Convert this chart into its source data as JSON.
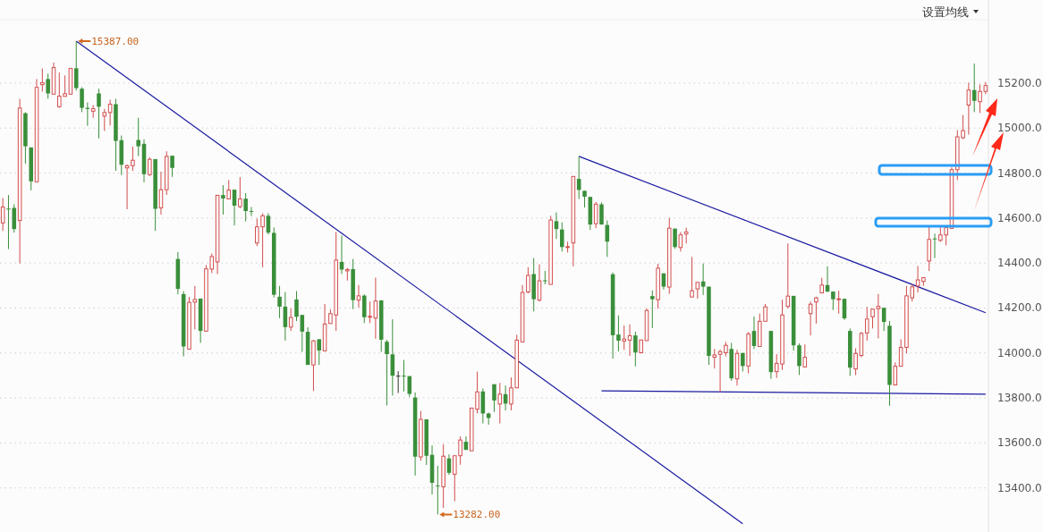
{
  "chart_data": {
    "type": "candlestick",
    "categories": [
      null,
      null,
      null,
      null,
      null,
      null,
      null,
      null,
      null,
      null,
      null,
      null,
      null,
      null,
      null,
      null,
      null,
      null,
      null,
      null,
      null,
      null,
      null,
      null,
      null,
      null,
      null,
      null,
      null,
      null,
      null,
      null,
      null,
      null,
      null,
      null,
      null,
      null,
      null,
      null,
      null,
      null,
      null,
      null,
      null,
      null,
      null,
      null,
      null,
      null,
      null,
      null,
      null,
      null,
      null,
      null,
      null,
      null,
      null,
      null,
      null,
      null,
      null,
      null,
      null,
      null,
      null,
      null,
      null,
      null,
      null,
      null,
      null,
      null,
      null,
      null,
      null,
      null,
      null,
      null,
      null,
      null,
      null,
      null,
      null,
      null,
      null,
      null,
      null,
      null,
      null,
      null,
      null,
      null,
      null,
      null,
      null,
      null,
      null,
      null,
      null,
      null,
      null,
      null,
      null,
      null,
      null,
      null,
      null,
      null,
      null,
      null,
      null,
      null,
      null,
      null,
      null,
      null,
      null,
      null,
      null,
      null,
      null,
      null,
      null,
      null,
      null,
      null,
      null,
      null,
      null,
      null,
      null,
      null,
      null,
      null,
      null,
      null,
      null,
      null,
      null,
      null,
      null,
      null,
      null,
      null,
      null,
      null,
      null,
      null,
      null,
      null,
      null,
      null,
      null,
      null,
      null,
      null,
      null,
      null,
      null,
      null,
      null,
      null,
      null,
      null,
      null,
      null,
      null,
      null,
      null,
      null,
      null,
      null,
      null
    ],
    "ohlc": [
      [
        14578,
        14689,
        14543,
        14649
      ],
      [
        14642,
        14702,
        14462,
        14638
      ],
      [
        14645,
        14661,
        14535,
        14551
      ],
      [
        14589,
        15130,
        14398,
        15089
      ],
      [
        15066,
        15071,
        14842,
        14919
      ],
      [
        14914,
        14914,
        14723,
        14763
      ],
      [
        14761,
        15218,
        14761,
        15181
      ],
      [
        15193,
        15265,
        15162,
        15202
      ],
      [
        15218,
        15242,
        15131,
        15154
      ],
      [
        15151,
        15291,
        15151,
        15269
      ],
      [
        15095,
        15247,
        15090,
        15142
      ],
      [
        15141,
        15234,
        15141,
        15153
      ],
      [
        15151,
        15265,
        15151,
        15265
      ],
      [
        15266,
        15387,
        15167,
        15178
      ],
      [
        15175,
        15182,
        15071,
        15090
      ],
      [
        15090,
        15114,
        15010,
        15085
      ],
      [
        15075,
        15102,
        15046,
        15086
      ],
      [
        15154,
        15175,
        14954,
        15095
      ],
      [
        15053,
        15085,
        14987,
        15069
      ],
      [
        15069,
        15126,
        15011,
        15106
      ],
      [
        15106,
        15130,
        14810,
        14943
      ],
      [
        14946,
        14967,
        14791,
        14837
      ],
      [
        14823,
        14838,
        14639,
        14833
      ],
      [
        14833,
        14918,
        14810,
        14857
      ],
      [
        14947,
        15046,
        14875,
        14919
      ],
      [
        14930,
        14950,
        14759,
        14795
      ],
      [
        14793,
        14871,
        14787,
        14861
      ],
      [
        14862,
        14862,
        14543,
        14641
      ],
      [
        14645,
        14806,
        14615,
        14726
      ],
      [
        14726,
        14897,
        14703,
        14874
      ],
      [
        14877,
        14877,
        14783,
        14823
      ],
      [
        14418,
        14449,
        14261,
        14285
      ],
      [
        14262,
        14275,
        13985,
        14029
      ],
      [
        14017,
        14249,
        14017,
        14225
      ],
      [
        14226,
        14298,
        14105,
        14238
      ],
      [
        14242,
        14242,
        14045,
        14098
      ],
      [
        14097,
        14391,
        14097,
        14374
      ],
      [
        14373,
        14442,
        14355,
        14429
      ],
      [
        14405,
        14701,
        14351,
        14701
      ],
      [
        14702,
        14746,
        14615,
        14687
      ],
      [
        14685,
        14769,
        14685,
        14725
      ],
      [
        14726,
        14726,
        14567,
        14655
      ],
      [
        14651,
        14782,
        14643,
        14685
      ],
      [
        14686,
        14711,
        14585,
        14631
      ],
      [
        14631,
        14649,
        14609,
        14627
      ],
      [
        14489,
        14598,
        14475,
        14561
      ],
      [
        14561,
        14621,
        14381,
        14610
      ],
      [
        14610,
        14621,
        14527,
        14535
      ],
      [
        14534,
        14558,
        14247,
        14259
      ],
      [
        14250,
        14298,
        14155,
        14206
      ],
      [
        14206,
        14271,
        14055,
        14115
      ],
      [
        14115,
        14198,
        14098,
        14158
      ],
      [
        14238,
        14275,
        14142,
        14161
      ],
      [
        14169,
        14169,
        14005,
        14095
      ],
      [
        14094,
        14114,
        13947,
        13947
      ],
      [
        13947,
        14058,
        13831,
        14054
      ],
      [
        14061,
        14061,
        13947,
        14011
      ],
      [
        14009,
        14218,
        14009,
        14129
      ],
      [
        14131,
        14194,
        14131,
        14175
      ],
      [
        14169,
        14538,
        14098,
        14413
      ],
      [
        14405,
        14522,
        14351,
        14371
      ],
      [
        14365,
        14378,
        14322,
        14371
      ],
      [
        14373,
        14418,
        14195,
        14235
      ],
      [
        14235,
        14302,
        14202,
        14254
      ],
      [
        14255,
        14261,
        14133,
        14159
      ],
      [
        14159,
        14229,
        14133,
        14163
      ],
      [
        14155,
        14335,
        14063,
        14231
      ],
      [
        14234,
        14234,
        14005,
        14059
      ],
      [
        14050,
        14058,
        13767,
        13995
      ],
      [
        13994,
        14150,
        13811,
        13899
      ],
      [
        13897,
        13919,
        13822,
        13897
      ],
      [
        13899,
        13969,
        13829,
        13895
      ],
      [
        13897,
        13897,
        13805,
        13818
      ],
      [
        13802,
        13825,
        13455,
        13539
      ],
      [
        13538,
        13742,
        13521,
        13705
      ],
      [
        13705,
        13705,
        13502,
        13543
      ],
      [
        13547,
        13589,
        13371,
        13423
      ],
      [
        13411,
        13498,
        13282,
        13407
      ],
      [
        13405,
        13594,
        13311,
        13541
      ],
      [
        13531,
        13549,
        13458,
        13467
      ],
      [
        13461,
        13543,
        13341,
        13543
      ],
      [
        13543,
        13629,
        13503,
        13613
      ],
      [
        13605,
        13629,
        13569,
        13569
      ],
      [
        13565,
        13755,
        13565,
        13755
      ],
      [
        13750,
        13917,
        13731,
        13827
      ],
      [
        13829,
        13842,
        13687,
        13731
      ],
      [
        13731,
        13735,
        13681,
        13711
      ],
      [
        13861,
        13861,
        13738,
        13789
      ],
      [
        13773,
        13867,
        13687,
        13817
      ],
      [
        13817,
        13855,
        13745,
        13775
      ],
      [
        13773,
        13891,
        13745,
        13845
      ],
      [
        13845,
        14081,
        13845,
        14057
      ],
      [
        14049,
        14302,
        14049,
        14269
      ],
      [
        14271,
        14381,
        14265,
        14345
      ],
      [
        14351,
        14422,
        14185,
        14239
      ],
      [
        14235,
        14394,
        14229,
        14321
      ],
      [
        14323,
        14365,
        14305,
        14319
      ],
      [
        14305,
        14610,
        14305,
        14591
      ],
      [
        14586,
        14625,
        14507,
        14551
      ],
      [
        14549,
        14581,
        14451,
        14471
      ],
      [
        14469,
        14495,
        14447,
        14473
      ],
      [
        14489,
        14785,
        14385,
        14785
      ],
      [
        14774,
        14874,
        14685,
        14725
      ],
      [
        14721,
        14721,
        14647,
        14695
      ],
      [
        14694,
        14694,
        14547,
        14571
      ],
      [
        14575,
        14671,
        14555,
        14662
      ],
      [
        14661,
        14669,
        14571,
        14571
      ],
      [
        14569,
        14589,
        14427,
        14495
      ],
      [
        14350,
        14358,
        13975,
        14079
      ],
      [
        14082,
        14167,
        14007,
        14055
      ],
      [
        14053,
        14122,
        14014,
        14062
      ],
      [
        14057,
        14127,
        13987,
        14077
      ],
      [
        14078,
        14095,
        13941,
        14002
      ],
      [
        14001,
        14058,
        13998,
        14058
      ],
      [
        14055,
        14198,
        14055,
        14189
      ],
      [
        14253,
        14278,
        14111,
        14239
      ],
      [
        14237,
        14397,
        14197,
        14377
      ],
      [
        14354,
        14354,
        14282,
        14295
      ],
      [
        14293,
        14601,
        14263,
        14555
      ],
      [
        14553,
        14553,
        14463,
        14471
      ],
      [
        14469,
        14538,
        14451,
        14525
      ],
      [
        14529,
        14557,
        14487,
        14538
      ],
      [
        14249,
        14427,
        14249,
        14277
      ],
      [
        14285,
        14314,
        14242,
        14314
      ],
      [
        14318,
        14398,
        14258,
        14295
      ],
      [
        14295,
        14295,
        13947,
        13987
      ],
      [
        13981,
        14018,
        13931,
        13991
      ],
      [
        13994,
        14015,
        13825,
        14006
      ],
      [
        14001,
        14049,
        13985,
        14034
      ],
      [
        14018,
        14045,
        13877,
        13887
      ],
      [
        13885,
        14014,
        13855,
        13998
      ],
      [
        14000,
        14000,
        13918,
        13942
      ],
      [
        13942,
        14093,
        13909,
        14085
      ],
      [
        14098,
        14162,
        14018,
        14031
      ],
      [
        14029,
        14175,
        14029,
        14141
      ],
      [
        14141,
        14218,
        14141,
        14205
      ],
      [
        14098,
        14098,
        13885,
        13915
      ],
      [
        13917,
        13995,
        13889,
        13954
      ],
      [
        13951,
        14237,
        13925,
        14169
      ],
      [
        14207,
        14487,
        14198,
        14253
      ],
      [
        14254,
        14254,
        14011,
        14034
      ],
      [
        14034,
        14042,
        13902,
        13942
      ],
      [
        13938,
        14038,
        13938,
        13981
      ],
      [
        14175,
        14229,
        14078,
        14217
      ],
      [
        14227,
        14250,
        14131,
        14245
      ],
      [
        14267,
        14334,
        14267,
        14302
      ],
      [
        14302,
        14385,
        14271,
        14273
      ],
      [
        14273,
        14273,
        14191,
        14239
      ],
      [
        14237,
        14277,
        14175,
        14241
      ],
      [
        14241,
        14241,
        14147,
        14154
      ],
      [
        14098,
        14109,
        13898,
        13935
      ],
      [
        13929,
        14021,
        13901,
        13998
      ],
      [
        13989,
        14094,
        13981,
        14087
      ],
      [
        14089,
        14205,
        14055,
        14151
      ],
      [
        14161,
        14195,
        14109,
        14195
      ],
      [
        14197,
        14262,
        14065,
        14207
      ],
      [
        14201,
        14201,
        14098,
        14138
      ],
      [
        14121,
        14142,
        13765,
        13858
      ],
      [
        13858,
        13958,
        13855,
        13941
      ],
      [
        13941,
        14061,
        13941,
        14025
      ],
      [
        14025,
        14298,
        13998,
        14254
      ],
      [
        14245,
        14305,
        14229,
        14294
      ],
      [
        14298,
        14387,
        14269,
        14325
      ],
      [
        14318,
        14335,
        14298,
        14335
      ],
      [
        14409,
        14561,
        14365,
        14505
      ],
      [
        14509,
        14531,
        14422,
        14505
      ],
      [
        14501,
        14565,
        14494,
        14525
      ],
      [
        14525,
        14557,
        14478,
        14557
      ],
      [
        14554,
        14825,
        14554,
        14815
      ],
      [
        14815,
        14991,
        14769,
        14961
      ],
      [
        14957,
        15058,
        14951,
        14989
      ],
      [
        15102,
        15202,
        14971,
        15169
      ],
      [
        15169,
        15287,
        15071,
        15121
      ],
      [
        15117,
        15194,
        15067,
        15163
      ],
      [
        15163,
        15205,
        15151,
        15189
      ]
    ],
    "colors": [
      "#d24d4d",
      "#3a8f3a",
      "#3a8f3a",
      "#d24d4d",
      "#3a8f3a",
      "#3a8f3a",
      "#d24d4d",
      "#d24d4d",
      "#3a8f3a",
      "#d24d4d",
      "#d24d4d",
      "#d24d4d",
      "#d24d4d",
      "#3a8f3a",
      "#3a8f3a",
      "#3a8f3a",
      "#d24d4d",
      "#3a8f3a",
      "#d24d4d",
      "#d24d4d",
      "#3a8f3a",
      "#3a8f3a",
      "#d24d4d",
      "#d24d4d",
      "#3a8f3a",
      "#3a8f3a",
      "#d24d4d",
      "#3a8f3a",
      "#d24d4d",
      "#d24d4d",
      "#3a8f3a",
      "#3a8f3a",
      "#3a8f3a",
      "#d24d4d",
      "#d24d4d",
      "#3a8f3a",
      "#d24d4d",
      "#d24d4d",
      "#d24d4d",
      "#3a8f3a",
      "#d24d4d",
      "#3a8f3a",
      "#d24d4d",
      "#3a8f3a",
      "#3a8f3a",
      "#d24d4d",
      "#d24d4d",
      "#3a8f3a",
      "#3a8f3a",
      "#3a8f3a",
      "#3a8f3a",
      "#d24d4d",
      "#3a8f3a",
      "#3a8f3a",
      "#3a8f3a",
      "#d24d4d",
      "#3a8f3a",
      "#d24d4d",
      "#d24d4d",
      "#d24d4d",
      "#3a8f3a",
      "#d24d4d",
      "#3a8f3a",
      "#d24d4d",
      "#3a8f3a",
      "#d24d4d",
      "#d24d4d",
      "#3a8f3a",
      "#3a8f3a",
      "#3a8f3a",
      "#333333",
      "#3a8f3a",
      "#3a8f3a",
      "#3a8f3a",
      "#d24d4d",
      "#3a8f3a",
      "#3a8f3a",
      "#3a8f3a",
      "#d24d4d",
      "#3a8f3a",
      "#d24d4d",
      "#d24d4d",
      "#3a8f3a",
      "#d24d4d",
      "#d24d4d",
      "#3a8f3a",
      "#3a8f3a",
      "#3a8f3a",
      "#d24d4d",
      "#3a8f3a",
      "#d24d4d",
      "#d24d4d",
      "#d24d4d",
      "#d24d4d",
      "#3a8f3a",
      "#d24d4d",
      "#3a8f3a",
      "#d24d4d",
      "#3a8f3a",
      "#3a8f3a",
      "#d24d4d",
      "#d24d4d",
      "#3a8f3a",
      "#3a8f3a",
      "#3a8f3a",
      "#d24d4d",
      "#3a8f3a",
      "#3a8f3a",
      "#3a8f3a",
      "#3a8f3a",
      "#d24d4d",
      "#d24d4d",
      "#3a8f3a",
      "#d24d4d",
      "#d24d4d",
      "#3a8f3a",
      "#d24d4d",
      "#3a8f3a",
      "#d24d4d",
      "#3a8f3a",
      "#d24d4d",
      "#d24d4d",
      "#d24d4d",
      "#d24d4d",
      "#3a8f3a",
      "#3a8f3a",
      "#d24d4d",
      "#d24d4d",
      "#d24d4d",
      "#3a8f3a",
      "#d24d4d",
      "#3a8f3a",
      "#d24d4d",
      "#3a8f3a",
      "#d24d4d",
      "#d24d4d",
      "#3a8f3a",
      "#d24d4d",
      "#d24d4d",
      "#d24d4d",
      "#3a8f3a",
      "#3a8f3a",
      "#d24d4d",
      "#d24d4d",
      "#d24d4d",
      "#d24d4d",
      "#3a8f3a",
      "#3a8f3a",
      "#d24d4d",
      "#3a8f3a",
      "#3a8f3a",
      "#d24d4d",
      "#d24d4d",
      "#d24d4d",
      "#d24d4d",
      "#d24d4d",
      "#3a8f3a",
      "#3a8f3a",
      "#d24d4d",
      "#d24d4d",
      "#d24d4d",
      "#d24d4d",
      "#d24d4d",
      "#d24d4d",
      "#d24d4d",
      "#3a8f3a",
      "#d24d4d",
      "#d24d4d",
      "#d24d4d",
      "#d24d4d",
      "#d24d4d",
      "#d24d4d",
      "#3a8f3a",
      "#d24d4d",
      "#d24d4d"
    ],
    "series": [
      {
        "type": "line",
        "color": "#1a1aa0",
        "values": [
          null,
          null,
          null,
          null,
          null,
          null,
          null,
          null,
          null,
          null,
          null,
          null,
          null,
          15387,
          null,
          null,
          null,
          null,
          null,
          null,
          null,
          null,
          null,
          null,
          null,
          null,
          null,
          null,
          null,
          null,
          null,
          null,
          null,
          null,
          null,
          null,
          null,
          null,
          null,
          null,
          null,
          null,
          null,
          null,
          null,
          null,
          null,
          null,
          null,
          null,
          null,
          null,
          null,
          null,
          null,
          null,
          null,
          null,
          null,
          null,
          null,
          null,
          null,
          null,
          null,
          null,
          null,
          null,
          null,
          null,
          null,
          null,
          null,
          null,
          null,
          null,
          null,
          null,
          null,
          null,
          null,
          null,
          null,
          null,
          null,
          null,
          null,
          null,
          null,
          null,
          null,
          null,
          null,
          null,
          null,
          null,
          null,
          null,
          null,
          null,
          null,
          null,
          null,
          null,
          null,
          null,
          null,
          null,
          null,
          null,
          null,
          null,
          null,
          null,
          null,
          null,
          null,
          null,
          null,
          null,
          null,
          null,
          null,
          null,
          null,
          null,
          null,
          null,
          null,
          null,
          null,
          13241,
          null,
          null,
          null,
          null,
          null,
          null,
          null,
          null,
          null,
          null,
          null,
          null,
          null,
          null,
          null,
          null,
          null,
          null,
          null,
          null,
          null,
          null,
          null,
          null,
          null,
          null,
          null,
          null,
          null,
          null,
          null,
          null,
          null,
          null,
          null,
          null,
          null,
          null,
          null,
          null,
          null,
          null,
          null
        ]
      },
      {
        "type": "line",
        "color": "#1a1aa0",
        "values": [
          null,
          null,
          null,
          null,
          null,
          null,
          null,
          null,
          null,
          null,
          null,
          null,
          null,
          null,
          null,
          null,
          null,
          null,
          null,
          null,
          null,
          null,
          null,
          null,
          null,
          null,
          null,
          null,
          null,
          null,
          null,
          null,
          null,
          null,
          null,
          null,
          null,
          null,
          null,
          null,
          null,
          null,
          null,
          null,
          null,
          null,
          null,
          null,
          null,
          null,
          null,
          null,
          null,
          null,
          null,
          null,
          null,
          null,
          null,
          null,
          null,
          null,
          null,
          null,
          null,
          null,
          null,
          null,
          null,
          null,
          null,
          null,
          null,
          null,
          null,
          null,
          null,
          null,
          null,
          null,
          null,
          null,
          null,
          null,
          null,
          null,
          null,
          null,
          null,
          null,
          null,
          null,
          null,
          null,
          null,
          null,
          null,
          null,
          null,
          null,
          null,
          null,
          14874,
          null,
          null,
          null,
          null,
          null,
          null,
          null,
          null,
          null,
          null,
          null,
          null,
          null,
          null,
          null,
          null,
          null,
          null,
          null,
          null,
          null,
          null,
          null,
          null,
          null,
          null,
          null,
          null,
          null,
          null,
          null,
          null,
          null,
          null,
          null,
          null,
          null,
          null,
          null,
          null,
          null,
          null,
          null,
          null,
          null,
          null,
          null,
          null,
          null,
          null,
          null,
          null,
          null,
          null,
          null,
          null,
          null,
          null,
          null,
          null,
          null,
          null,
          null,
          null,
          null,
          null,
          null,
          null,
          null,
          null,
          null,
          14179
        ]
      },
      {
        "type": "line",
        "color": "#1a1aa0",
        "values": [
          null,
          null,
          null,
          null,
          null,
          null,
          null,
          null,
          null,
          null,
          null,
          null,
          null,
          null,
          null,
          null,
          null,
          null,
          null,
          null,
          null,
          null,
          null,
          null,
          null,
          null,
          null,
          null,
          null,
          null,
          null,
          null,
          null,
          null,
          null,
          null,
          null,
          null,
          null,
          null,
          null,
          null,
          null,
          null,
          null,
          null,
          null,
          null,
          null,
          null,
          null,
          null,
          null,
          null,
          null,
          null,
          null,
          null,
          null,
          null,
          null,
          null,
          null,
          null,
          null,
          null,
          null,
          null,
          null,
          null,
          null,
          null,
          null,
          null,
          null,
          null,
          null,
          null,
          null,
          null,
          null,
          null,
          null,
          null,
          null,
          null,
          null,
          null,
          null,
          null,
          null,
          null,
          null,
          null,
          null,
          null,
          null,
          null,
          null,
          null,
          null,
          null,
          null,
          null,
          null,
          null,
          13832,
          null,
          null,
          null,
          null,
          null,
          null,
          null,
          null,
          null,
          null,
          null,
          null,
          null,
          null,
          null,
          null,
          null,
          null,
          null,
          null,
          null,
          null,
          null,
          null,
          null,
          null,
          null,
          null,
          null,
          null,
          null,
          null,
          null,
          null,
          null,
          null,
          null,
          null,
          null,
          null,
          null,
          null,
          null,
          null,
          null,
          null,
          null,
          null,
          null,
          null,
          null,
          null,
          null,
          null,
          null,
          null,
          null,
          null,
          null,
          null,
          null,
          null,
          null,
          null,
          null,
          null,
          null,
          13817
        ]
      }
    ],
    "ylim": [
      13204,
      15482
    ],
    "yticks": [
      {
        "value": 13400,
        "label": "13400.0"
      },
      {
        "value": 13600,
        "label": "13600.0"
      },
      {
        "value": 13800,
        "label": "13800.0"
      },
      {
        "value": 14000,
        "label": "14000.0"
      },
      {
        "value": 14200,
        "label": "14200.0"
      },
      {
        "value": 14400,
        "label": "14400.0"
      },
      {
        "value": 14600,
        "label": "14600.0"
      },
      {
        "value": 14800,
        "label": "14800.0"
      },
      {
        "value": 15000,
        "label": "15000.0"
      },
      {
        "value": 15200,
        "label": "15200.0"
      }
    ],
    "grid": "y",
    "tick_labels": "y",
    "annotations": [
      "15387.00",
      "13282.00",
      "设置均线"
    ]
  }
}
